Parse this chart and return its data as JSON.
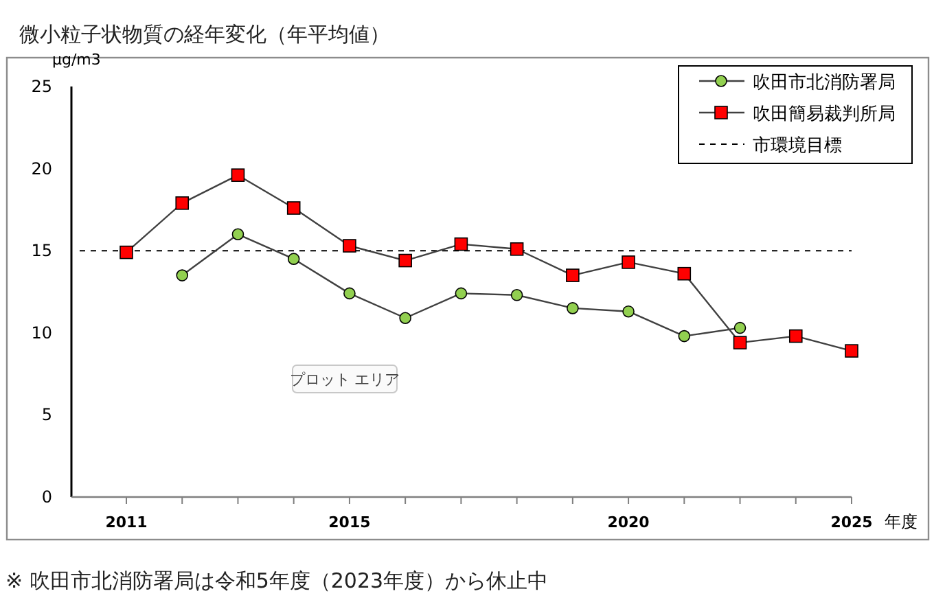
{
  "chart_data": {
    "type": "line",
    "title": "微小粒子状物質の経年変化（年平均値）",
    "ylabel": "μg/m3",
    "xlabel": "年度",
    "categories": [
      "2011",
      null,
      null,
      null,
      "2015",
      null,
      null,
      null,
      null,
      "2020",
      null,
      null,
      null,
      "2025"
    ],
    "series": [
      {
        "name": "吹田市北消防署局",
        "color": "#92d050",
        "marker": "circle",
        "values": [
          null,
          13.5,
          16.0,
          14.5,
          12.4,
          10.9,
          12.4,
          12.3,
          11.5,
          11.3,
          9.8,
          10.3,
          null,
          null
        ]
      },
      {
        "name": "吹田簡易裁判所局",
        "color": "#ff0000",
        "marker": "square",
        "values": [
          14.9,
          17.9,
          19.6,
          17.6,
          15.3,
          14.4,
          15.4,
          15.1,
          13.5,
          14.3,
          13.6,
          9.4,
          9.8,
          8.9
        ]
      }
    ],
    "ylim": [
      0,
      25
    ],
    "yticks": [
      0,
      5,
      10,
      15,
      20,
      25
    ],
    "ref_lines": [
      {
        "axis": "y",
        "value": 15,
        "label": "市環境目標",
        "color": "#000000",
        "line_style": "dashed"
      }
    ],
    "legend": "top right",
    "annotations": [
      "プロット エリア",
      "※ 吹田市北消防署局は令和5年度（2023年度）から休止中"
    ]
  }
}
